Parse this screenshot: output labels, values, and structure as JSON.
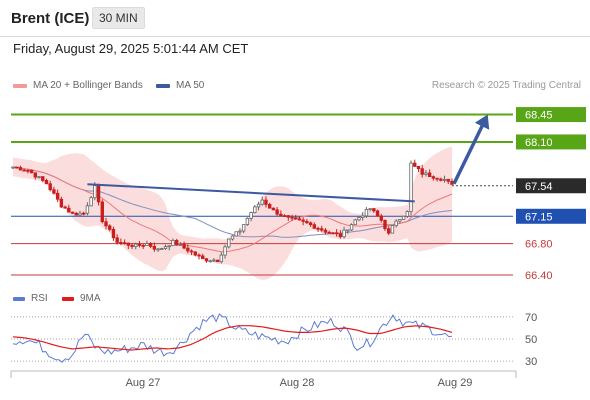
{
  "header": {
    "instrument": "Brent (ICE)",
    "timeframe": "30 MIN",
    "datetime": "Friday, August 29, 2025 5:01:44 AM CET"
  },
  "legend": {
    "ma20_label": "MA 20 + Bollinger Bands",
    "ma50_label": "MA 50",
    "credit": "Research © 2025 Trading Central",
    "rsi_label": "RSI",
    "rsi_ma_label": "9MA"
  },
  "colors": {
    "bb_band": "#f9b3b3",
    "ma20": "#ee7878",
    "ma50": "#7f8fc0",
    "trend_line": "#3d5aa0",
    "green_level": "#58a617",
    "blue_level": "#2050b0",
    "red_level": "#c23b3b",
    "current_badge": "#2a2a2a",
    "candle_up": "#666666",
    "candle_down": "#c91e1e",
    "rsi_line": "#5b7bd6",
    "rsi_ma": "#e31b1b"
  },
  "chart_data": [
    {
      "type": "candlestick",
      "title": "",
      "x_ticks": [
        "Aug 27",
        "Aug 28",
        "Aug 29"
      ],
      "ylim": [
        66.31,
        68.7
      ],
      "levels": [
        {
          "value": 68.45,
          "label": "68.45",
          "kind": "resistance"
        },
        {
          "value": 68.1,
          "label": "68.10",
          "kind": "resistance"
        },
        {
          "value": 67.54,
          "label": "67.54",
          "kind": "current"
        },
        {
          "value": 67.15,
          "label": "67.15",
          "kind": "pivot"
        },
        {
          "value": 66.8,
          "label": "66.80",
          "kind": "support"
        },
        {
          "value": 66.4,
          "label": "66.40",
          "kind": "support"
        }
      ],
      "close_path": [
        [
          0,
          67.78
        ],
        [
          4,
          67.74
        ],
        [
          9,
          67.57
        ],
        [
          13,
          67.29
        ],
        [
          16,
          67.18
        ],
        [
          19,
          67.19
        ],
        [
          22,
          67.52
        ],
        [
          24,
          67.1
        ],
        [
          28,
          66.82
        ],
        [
          33,
          66.77
        ],
        [
          36,
          66.8
        ],
        [
          39,
          66.72
        ],
        [
          43,
          66.82
        ],
        [
          47,
          66.72
        ],
        [
          51,
          66.6
        ],
        [
          55,
          66.59
        ],
        [
          58,
          66.85
        ],
        [
          61,
          66.97
        ],
        [
          64,
          67.2
        ],
        [
          67,
          67.36
        ],
        [
          70,
          67.22
        ],
        [
          74,
          67.12
        ],
        [
          79,
          67.06
        ],
        [
          84,
          66.96
        ],
        [
          88,
          66.9
        ],
        [
          92,
          67.1
        ],
        [
          96,
          67.25
        ],
        [
          99,
          67.1
        ],
        [
          101,
          66.92
        ],
        [
          103,
          67.1
        ],
        [
          106,
          67.2
        ],
        [
          107,
          67.82
        ],
        [
          110,
          67.7
        ],
        [
          113,
          67.66
        ],
        [
          116,
          67.62
        ],
        [
          118,
          67.54
        ]
      ],
      "trend_line": {
        "start": [
          20,
          67.56
        ],
        "end": [
          108,
          67.34
        ]
      },
      "projection_arrow": {
        "start": [
          118,
          67.54
        ],
        "end": [
          126,
          68.45
        ]
      },
      "annotations": [
        "Research © 2025 Trading Central"
      ]
    },
    {
      "type": "line",
      "title": "",
      "series": [
        {
          "name": "RSI",
          "values": [
            48,
            50,
            46,
            38,
            32,
            36,
            55,
            42,
            38,
            40,
            42,
            45,
            40,
            38,
            44,
            56,
            65,
            70,
            66,
            58,
            55,
            52,
            50,
            48,
            55,
            60,
            64,
            66,
            58,
            44,
            46,
            60,
            72,
            65,
            62,
            60,
            55,
            50
          ]
        },
        {
          "name": "9MA",
          "values": [
            52,
            51,
            49,
            46,
            43,
            41,
            42,
            43,
            42,
            41,
            40,
            41,
            42,
            41,
            42,
            45,
            50,
            56,
            60,
            62,
            62,
            61,
            59,
            57,
            56,
            56,
            57,
            59,
            60,
            58,
            55,
            55,
            58,
            61,
            62,
            61,
            59,
            56
          ]
        }
      ],
      "y_ticks": [
        70,
        50,
        30
      ],
      "ylim": [
        22,
        78
      ]
    }
  ]
}
